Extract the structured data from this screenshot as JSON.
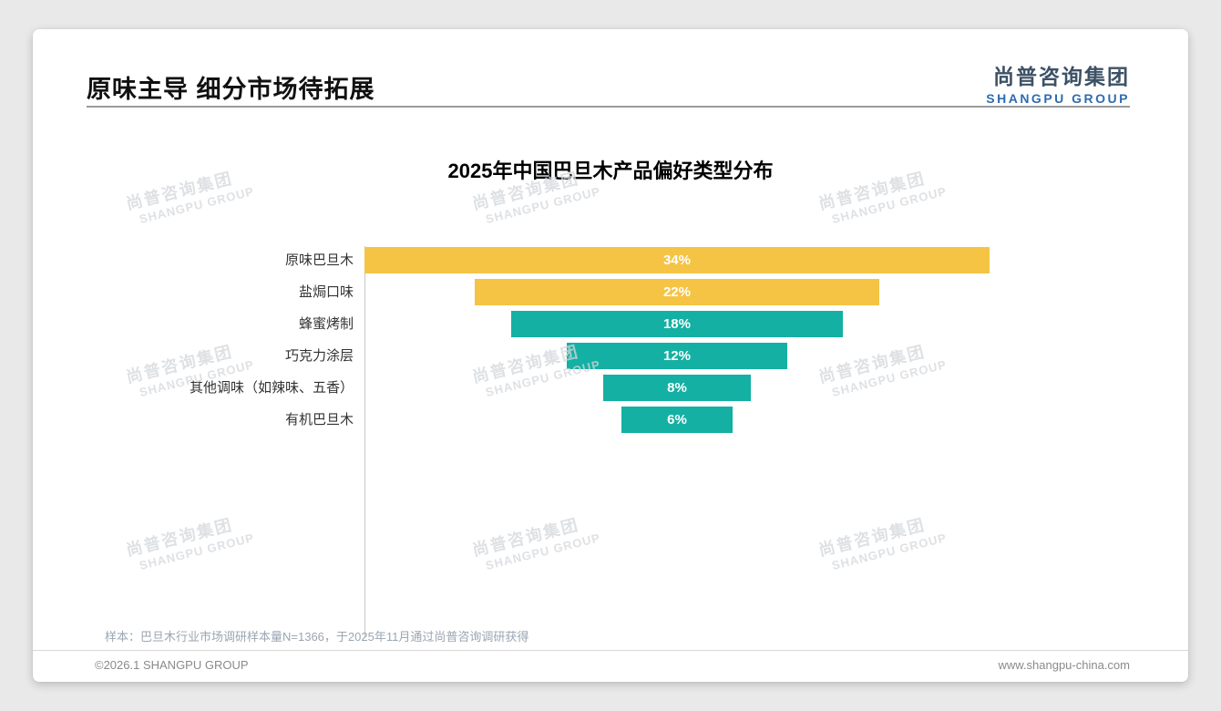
{
  "header": {
    "title": "原味主导 细分市场待拓展",
    "logo": {
      "cn": "尚普咨询集团",
      "en": "SHANGPU GROUP"
    },
    "logo_colors": {
      "cn": "#3d5166",
      "en": "#2e6cb0"
    }
  },
  "chart_data": {
    "type": "bar",
    "subtype": "horizontal-centered-funnel",
    "title": "2025年中国巴旦木产品偏好类型分布",
    "categories": [
      "原味巴旦木",
      "盐焗口味",
      "蜂蜜烤制",
      "巧克力涂层",
      "其他调味（如辣味、五香）",
      "有机巴旦木"
    ],
    "values": [
      34,
      22,
      18,
      12,
      8,
      6
    ],
    "value_labels": [
      "34%",
      "22%",
      "18%",
      "12%",
      "8%",
      "6%"
    ],
    "bar_colors": [
      "#F5C445",
      "#F5C445",
      "#14B0A3",
      "#14B0A3",
      "#14B0A3",
      "#14B0A3"
    ],
    "accent_yellow": "#F5C445",
    "accent_teal": "#14B0A3",
    "xlim": [
      0,
      34
    ],
    "grid": false,
    "legend": "none",
    "value_label_color": "#ffffff"
  },
  "watermark": {
    "cn": "尚普咨询集团",
    "en": "SHANGPU GROUP"
  },
  "footnote": "样本：巴旦木行业市场调研样本量N=1366，于2025年11月通过尚普咨询调研获得",
  "footer": {
    "left": "©2026.1 SHANGPU GROUP",
    "right": "www.shangpu-china.com"
  }
}
